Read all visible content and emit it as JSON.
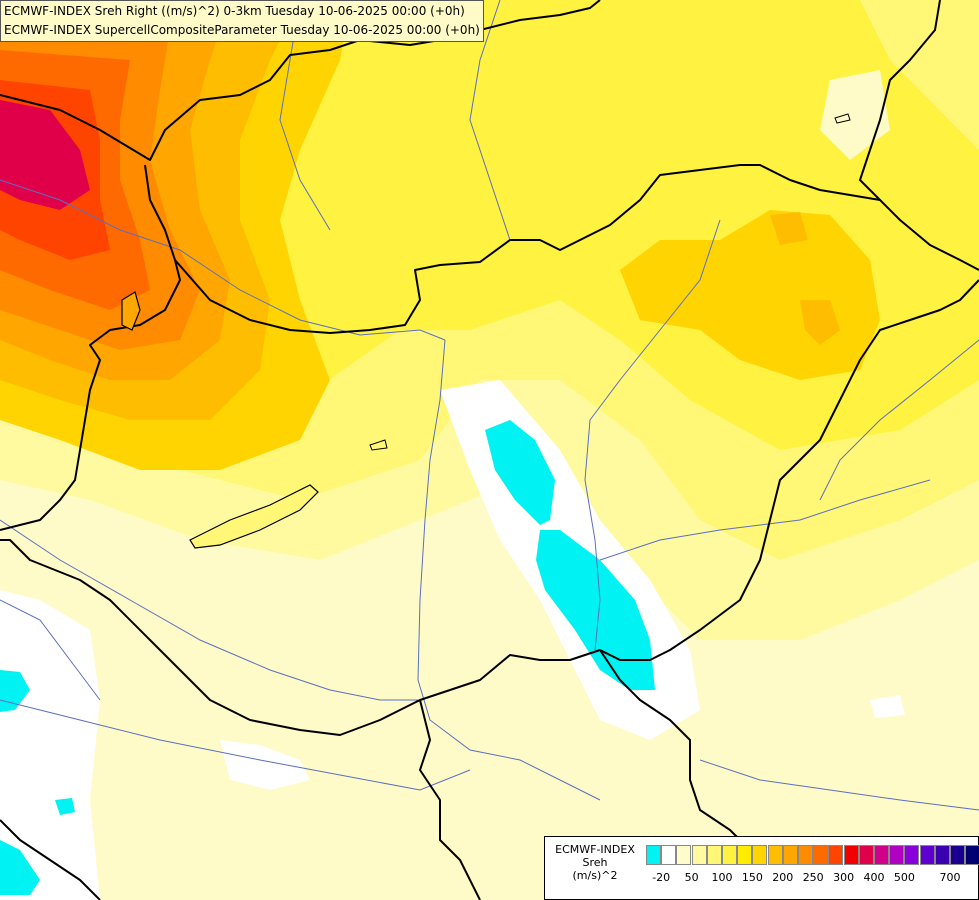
{
  "title": {
    "line1": "ECMWF-INDEX Sreh Right ((m/s)^2) 0-3km Tuesday 10-06-2025 00:00 (+0h)",
    "line2": "ECMWF-INDEX SupercellCompositeParameter Tuesday 10-06-2025 00:00 (+0h)"
  },
  "legend": {
    "line1": "ECMWF-INDEX",
    "line2": "Sreh",
    "line3": "(m/s)^2",
    "colors": [
      "#00f2f2",
      "#ffffff",
      "#fffccc",
      "#fffaa0",
      "#fff775",
      "#fff240",
      "#ffec00",
      "#ffd400",
      "#ffbd00",
      "#ffa600",
      "#ff8c00",
      "#ff6a00",
      "#ff4400",
      "#f20000",
      "#e0004a",
      "#d0008a",
      "#b000c0",
      "#8a00dd",
      "#6000d0",
      "#3a00b0",
      "#1a0090",
      "#000070"
    ],
    "ticks": [
      "-20",
      "50",
      "100",
      "150",
      "200",
      "250",
      "300",
      "400",
      "500",
      "700"
    ]
  },
  "map_colors": {
    "base": "#fffbc8",
    "pale": "#fffaa0",
    "light_yellow": "#fff775",
    "yellow": "#fff240",
    "deep_yellow": "#ffec00",
    "gold": "#ffd400",
    "orange_light": "#ffbd00",
    "orange": "#ffa600",
    "orange_dark": "#ff8c00",
    "red_orange": "#ff6a00",
    "red": "#ff4400",
    "crimson": "#e0004a",
    "cyan": "#00f2f2",
    "white": "#ffffff",
    "border": "#000000",
    "river": "#5a6fbf"
  }
}
